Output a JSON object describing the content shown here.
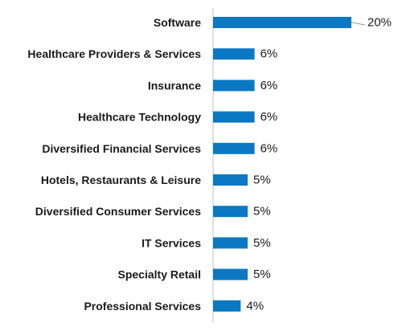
{
  "chart_data": {
    "type": "bar",
    "orientation": "horizontal",
    "categories": [
      "Software",
      "Healthcare Providers & Services",
      "Insurance",
      "Healthcare Technology",
      "Diversified Financial Services",
      "Hotels, Restaurants & Leisure",
      "Diversified Consumer Services",
      "IT Services",
      "Specialty Retail",
      "Professional Services"
    ],
    "values": [
      20,
      6,
      6,
      6,
      6,
      5,
      5,
      5,
      5,
      4
    ],
    "value_labels": [
      "20%",
      "6%",
      "6%",
      "6%",
      "6%",
      "5%",
      "5%",
      "5%",
      "5%",
      "4%"
    ],
    "unit": "%",
    "xlim": [
      0,
      20
    ],
    "grid": false,
    "legend": "none",
    "bar_color": "#0a78c2",
    "axis_color": "#bfbfbf"
  }
}
